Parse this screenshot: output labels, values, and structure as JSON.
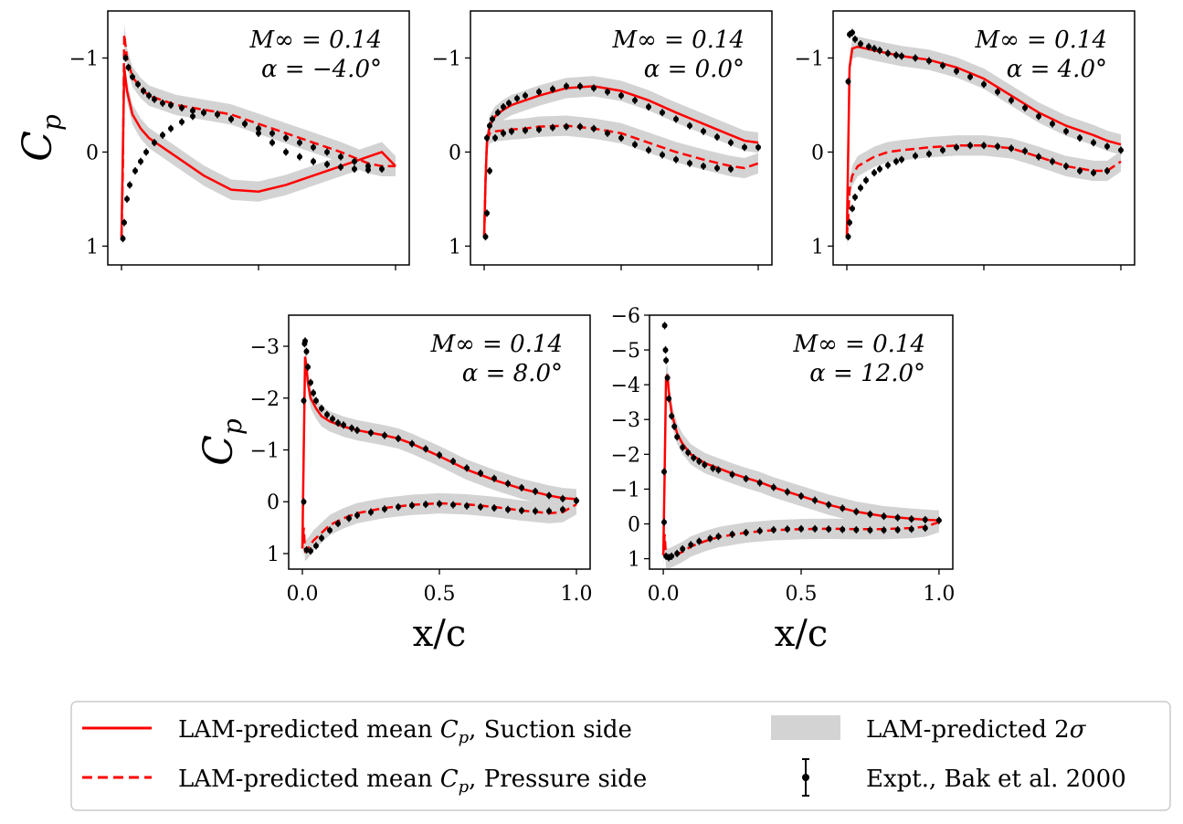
{
  "chart_data": [
    {
      "type": "line",
      "title": "",
      "mach_label": "M∞ = 0.14",
      "alpha_label": "α = −4.0°",
      "ylabel": "Cp",
      "xlabel": "",
      "ylim": [
        1.2,
        -1.5
      ],
      "yticks": [
        -1,
        0,
        1
      ],
      "ytick_labels": [
        "−1",
        "0",
        "1"
      ],
      "xticks": [
        0,
        0.5,
        1
      ],
      "xtick_labels": [],
      "suction_x": [
        0,
        0.005,
        0.01,
        0.02,
        0.04,
        0.07,
        0.1,
        0.15,
        0.2,
        0.3,
        0.4,
        0.5,
        0.6,
        0.7,
        0.8,
        0.9,
        0.95,
        1.0
      ],
      "suction_cp": [
        0.9,
        0.0,
        -0.9,
        -0.65,
        -0.4,
        -0.25,
        -0.15,
        -0.05,
        0.05,
        0.25,
        0.4,
        0.42,
        0.35,
        0.25,
        0.15,
        0.05,
        0.0,
        0.15
      ],
      "pressure_x": [
        0,
        0.005,
        0.01,
        0.02,
        0.04,
        0.07,
        0.1,
        0.15,
        0.2,
        0.3,
        0.4,
        0.5,
        0.6,
        0.7,
        0.8,
        0.9,
        0.95,
        1.0
      ],
      "pressure_cp": [
        0.9,
        0.2,
        -1.25,
        -1.0,
        -0.8,
        -0.68,
        -0.6,
        -0.55,
        -0.5,
        -0.45,
        -0.4,
        -0.3,
        -0.2,
        -0.1,
        0.0,
        0.12,
        0.15,
        0.15
      ],
      "expt_upper_x": [
        0.015,
        0.025,
        0.04,
        0.06,
        0.08,
        0.1,
        0.12,
        0.15,
        0.18,
        0.22,
        0.26,
        0.3,
        0.35,
        0.4,
        0.45,
        0.5,
        0.55,
        0.6,
        0.65,
        0.7,
        0.75,
        0.8,
        0.85,
        0.9,
        0.95
      ],
      "expt_upper_cp": [
        -1.0,
        -0.9,
        -0.8,
        -0.72,
        -0.65,
        -0.6,
        -0.56,
        -0.52,
        -0.5,
        -0.47,
        -0.44,
        -0.42,
        -0.4,
        -0.35,
        -0.3,
        -0.25,
        -0.2,
        -0.15,
        -0.1,
        -0.05,
        0.0,
        0.05,
        0.1,
        0.15,
        0.18
      ],
      "expt_lower_x": [
        0.005,
        0.01,
        0.02,
        0.03,
        0.05,
        0.07,
        0.09,
        0.12,
        0.15,
        0.18,
        0.22,
        0.26,
        0.3,
        0.35,
        0.4,
        0.45,
        0.5,
        0.55,
        0.6,
        0.65,
        0.7,
        0.75,
        0.8,
        0.85,
        0.9
      ],
      "expt_lower_cp": [
        0.92,
        0.75,
        0.5,
        0.35,
        0.2,
        0.1,
        0.0,
        -0.1,
        -0.18,
        -0.25,
        -0.32,
        -0.38,
        -0.42,
        -0.4,
        -0.35,
        -0.3,
        -0.2,
        -0.1,
        0.0,
        0.05,
        0.1,
        0.13,
        0.16,
        0.18,
        0.19
      ]
    },
    {
      "type": "line",
      "title": "",
      "mach_label": "M∞ = 0.14",
      "alpha_label": "α = 0.0°",
      "ylabel": "",
      "xlabel": "",
      "ylim": [
        1.2,
        -1.5
      ],
      "yticks": [
        -1,
        0,
        1
      ],
      "ytick_labels": [
        "−1",
        "0",
        "1"
      ],
      "xticks": [
        0,
        0.5,
        1
      ],
      "xtick_labels": [],
      "suction_x": [
        0,
        0.005,
        0.01,
        0.02,
        0.04,
        0.07,
        0.1,
        0.15,
        0.2,
        0.3,
        0.4,
        0.5,
        0.6,
        0.7,
        0.8,
        0.9,
        0.95,
        1.0
      ],
      "suction_cp": [
        0.9,
        0.3,
        -0.1,
        -0.28,
        -0.38,
        -0.45,
        -0.5,
        -0.55,
        -0.6,
        -0.68,
        -0.7,
        -0.65,
        -0.55,
        -0.42,
        -0.3,
        -0.18,
        -0.12,
        -0.1
      ],
      "pressure_x": [
        0,
        0.005,
        0.01,
        0.02,
        0.04,
        0.07,
        0.1,
        0.15,
        0.2,
        0.3,
        0.4,
        0.5,
        0.6,
        0.7,
        0.8,
        0.9,
        0.95,
        1.0
      ],
      "pressure_cp": [
        0.9,
        0.3,
        -0.1,
        -0.2,
        -0.22,
        -0.23,
        -0.24,
        -0.25,
        -0.27,
        -0.28,
        -0.25,
        -0.2,
        -0.1,
        0.0,
        0.08,
        0.15,
        0.17,
        0.12
      ],
      "expt_upper_x": [
        0.01,
        0.02,
        0.03,
        0.05,
        0.07,
        0.09,
        0.12,
        0.15,
        0.2,
        0.25,
        0.3,
        0.35,
        0.4,
        0.45,
        0.5,
        0.55,
        0.6,
        0.65,
        0.7,
        0.75,
        0.8,
        0.85,
        0.9,
        0.95,
        1.0
      ],
      "expt_upper_cp": [
        -0.15,
        -0.28,
        -0.35,
        -0.42,
        -0.48,
        -0.52,
        -0.57,
        -0.6,
        -0.64,
        -0.67,
        -0.7,
        -0.7,
        -0.68,
        -0.64,
        -0.6,
        -0.55,
        -0.48,
        -0.42,
        -0.35,
        -0.28,
        -0.22,
        -0.16,
        -0.1,
        -0.05,
        -0.05
      ],
      "expt_lower_x": [
        0.005,
        0.01,
        0.02,
        0.04,
        0.07,
        0.1,
        0.15,
        0.2,
        0.25,
        0.3,
        0.35,
        0.4,
        0.45,
        0.5,
        0.55,
        0.6,
        0.65,
        0.7,
        0.75,
        0.8,
        0.85,
        0.9
      ],
      "expt_lower_cp": [
        0.9,
        0.65,
        0.2,
        -0.15,
        -0.2,
        -0.22,
        -0.23,
        -0.24,
        -0.26,
        -0.27,
        -0.27,
        -0.25,
        -0.2,
        -0.15,
        -0.08,
        -0.02,
        0.03,
        0.08,
        0.12,
        0.15,
        0.17,
        0.18
      ]
    },
    {
      "type": "line",
      "title": "",
      "mach_label": "M∞ = 0.14",
      "alpha_label": "α = 4.0°",
      "ylabel": "",
      "xlabel": "",
      "ylim": [
        1.2,
        -1.5
      ],
      "yticks": [
        -1,
        0,
        1
      ],
      "ytick_labels": [
        "−1",
        "0",
        "1"
      ],
      "xticks": [
        0,
        0.5,
        1
      ],
      "xtick_labels": [],
      "suction_x": [
        0,
        0.005,
        0.01,
        0.02,
        0.04,
        0.07,
        0.1,
        0.15,
        0.2,
        0.3,
        0.4,
        0.5,
        0.6,
        0.7,
        0.8,
        0.9,
        0.95,
        1.0
      ],
      "suction_cp": [
        0.9,
        0.0,
        -0.9,
        -1.1,
        -1.12,
        -1.1,
        -1.08,
        -1.05,
        -1.02,
        -0.98,
        -0.9,
        -0.78,
        -0.6,
        -0.42,
        -0.28,
        -0.18,
        -0.12,
        -0.08
      ],
      "pressure_x": [
        0,
        0.005,
        0.01,
        0.02,
        0.04,
        0.07,
        0.1,
        0.15,
        0.2,
        0.3,
        0.4,
        0.5,
        0.6,
        0.7,
        0.8,
        0.9,
        0.95,
        1.0
      ],
      "pressure_cp": [
        0.9,
        0.7,
        0.4,
        0.25,
        0.15,
        0.1,
        0.05,
        0.0,
        -0.02,
        -0.05,
        -0.07,
        -0.07,
        -0.04,
        0.05,
        0.15,
        0.2,
        0.2,
        0.1
      ],
      "expt_upper_x": [
        0.005,
        0.01,
        0.02,
        0.03,
        0.05,
        0.08,
        0.1,
        0.12,
        0.15,
        0.18,
        0.2,
        0.25,
        0.3,
        0.35,
        0.4,
        0.45,
        0.5,
        0.55,
        0.6,
        0.65,
        0.7,
        0.75,
        0.8,
        0.85,
        0.9,
        0.95,
        1.0
      ],
      "expt_upper_cp": [
        -0.75,
        -1.25,
        -1.27,
        -1.2,
        -1.15,
        -1.12,
        -1.1,
        -1.08,
        -1.05,
        -1.03,
        -1.02,
        -1.0,
        -0.97,
        -0.92,
        -0.86,
        -0.8,
        -0.72,
        -0.64,
        -0.55,
        -0.47,
        -0.38,
        -0.3,
        -0.22,
        -0.15,
        -0.1,
        -0.06,
        -0.02
      ],
      "expt_lower_x": [
        0.005,
        0.01,
        0.02,
        0.03,
        0.05,
        0.07,
        0.1,
        0.12,
        0.15,
        0.18,
        0.2,
        0.25,
        0.3,
        0.35,
        0.4,
        0.45,
        0.5,
        0.55,
        0.6,
        0.65,
        0.7,
        0.75,
        0.8,
        0.85,
        0.9,
        0.95
      ],
      "expt_lower_cp": [
        0.9,
        0.75,
        0.6,
        0.48,
        0.38,
        0.3,
        0.22,
        0.18,
        0.14,
        0.1,
        0.08,
        0.04,
        0.02,
        -0.02,
        -0.05,
        -0.07,
        -0.07,
        -0.06,
        -0.04,
        -0.01,
        0.05,
        0.1,
        0.15,
        0.2,
        0.22,
        0.2
      ]
    },
    {
      "type": "line",
      "title": "",
      "mach_label": "M∞ = 0.14",
      "alpha_label": "α = 8.0°",
      "ylabel": "Cp",
      "xlabel": "x/c",
      "ylim": [
        1.3,
        -3.6
      ],
      "yticks": [
        -3,
        -2,
        -1,
        0,
        1
      ],
      "ytick_labels": [
        "−3",
        "−2",
        "−1",
        "0",
        "1"
      ],
      "xticks": [
        0,
        0.5,
        1
      ],
      "xtick_labels": [
        "0.0",
        "0.5",
        "1.0"
      ],
      "suction_x": [
        0,
        0.005,
        0.01,
        0.015,
        0.02,
        0.03,
        0.05,
        0.07,
        0.1,
        0.15,
        0.2,
        0.25,
        0.3,
        0.35,
        0.4,
        0.5,
        0.6,
        0.7,
        0.8,
        0.9,
        0.95,
        1.0
      ],
      "suction_cp": [
        0.9,
        -1.0,
        -2.8,
        -2.6,
        -2.3,
        -2.0,
        -1.8,
        -1.65,
        -1.55,
        -1.45,
        -1.38,
        -1.33,
        -1.28,
        -1.22,
        -1.12,
        -0.88,
        -0.62,
        -0.42,
        -0.25,
        -0.12,
        -0.07,
        -0.05
      ],
      "pressure_x": [
        0,
        0.005,
        0.01,
        0.02,
        0.04,
        0.07,
        0.1,
        0.15,
        0.2,
        0.3,
        0.4,
        0.5,
        0.6,
        0.7,
        0.8,
        0.9,
        0.95,
        1.0
      ],
      "pressure_cp": [
        0.9,
        0.5,
        0.95,
        0.9,
        0.75,
        0.6,
        0.45,
        0.32,
        0.22,
        0.12,
        0.06,
        0.03,
        0.05,
        0.1,
        0.17,
        0.22,
        0.2,
        0.05
      ],
      "expt_upper_x": [
        0.005,
        0.008,
        0.01,
        0.015,
        0.02,
        0.03,
        0.04,
        0.05,
        0.07,
        0.09,
        0.11,
        0.13,
        0.15,
        0.18,
        0.2,
        0.25,
        0.3,
        0.35,
        0.4,
        0.45,
        0.5,
        0.55,
        0.6,
        0.65,
        0.7,
        0.75,
        0.8,
        0.85,
        0.9,
        0.95,
        1.0
      ],
      "expt_upper_cp": [
        -1.95,
        -3.05,
        -3.1,
        -2.9,
        -2.6,
        -2.3,
        -2.1,
        -1.95,
        -1.8,
        -1.68,
        -1.6,
        -1.52,
        -1.48,
        -1.42,
        -1.38,
        -1.33,
        -1.28,
        -1.22,
        -1.12,
        -1.02,
        -0.9,
        -0.78,
        -0.65,
        -0.55,
        -0.45,
        -0.35,
        -0.27,
        -0.2,
        -0.12,
        -0.06,
        -0.02
      ],
      "expt_lower_x": [
        0.005,
        0.015,
        0.03,
        0.05,
        0.07,
        0.1,
        0.13,
        0.17,
        0.2,
        0.25,
        0.3,
        0.35,
        0.4,
        0.45,
        0.5,
        0.55,
        0.6,
        0.65,
        0.7,
        0.75,
        0.8,
        0.85,
        0.9,
        0.95
      ],
      "expt_lower_cp": [
        0.0,
        0.93,
        0.95,
        0.85,
        0.7,
        0.55,
        0.42,
        0.32,
        0.26,
        0.2,
        0.14,
        0.1,
        0.07,
        0.05,
        0.04,
        0.06,
        0.08,
        0.1,
        0.12,
        0.15,
        0.17,
        0.18,
        0.18,
        0.15
      ]
    },
    {
      "type": "line",
      "title": "",
      "mach_label": "M∞ = 0.14",
      "alpha_label": "α = 12.0°",
      "ylabel": "",
      "xlabel": "x/c",
      "ylim": [
        1.3,
        -6.0
      ],
      "yticks": [
        -6,
        -5,
        -4,
        -3,
        -2,
        -1,
        0,
        1
      ],
      "ytick_labels": [
        "−6",
        "−5",
        "−4",
        "−3",
        "−2",
        "−1",
        "0",
        "1"
      ],
      "xticks": [
        0,
        0.5,
        1
      ],
      "xtick_labels": [
        "0.0",
        "0.5",
        "1.0"
      ],
      "suction_x": [
        0,
        0.005,
        0.01,
        0.015,
        0.02,
        0.03,
        0.05,
        0.07,
        0.1,
        0.15,
        0.2,
        0.25,
        0.3,
        0.35,
        0.4,
        0.5,
        0.6,
        0.7,
        0.8,
        0.9,
        0.95,
        1.0
      ],
      "suction_cp": [
        0.9,
        -1.5,
        -4.2,
        -4.3,
        -3.8,
        -3.2,
        -2.6,
        -2.3,
        -2.0,
        -1.75,
        -1.6,
        -1.45,
        -1.32,
        -1.2,
        -1.05,
        -0.8,
        -0.55,
        -0.35,
        -0.22,
        -0.15,
        -0.12,
        -0.1
      ],
      "pressure_x": [
        0,
        0.005,
        0.01,
        0.02,
        0.04,
        0.07,
        0.1,
        0.15,
        0.2,
        0.3,
        0.4,
        0.5,
        0.6,
        0.7,
        0.8,
        0.9,
        0.95,
        1.0
      ],
      "pressure_cp": [
        0.9,
        0.3,
        0.97,
        1.0,
        0.92,
        0.8,
        0.65,
        0.5,
        0.38,
        0.25,
        0.18,
        0.15,
        0.14,
        0.15,
        0.15,
        0.12,
        0.08,
        -0.05
      ],
      "expt_upper_x": [
        0.003,
        0.005,
        0.008,
        0.01,
        0.015,
        0.02,
        0.03,
        0.04,
        0.05,
        0.07,
        0.09,
        0.11,
        0.13,
        0.15,
        0.18,
        0.2,
        0.25,
        0.3,
        0.35,
        0.4,
        0.45,
        0.5,
        0.55,
        0.6,
        0.65,
        0.7,
        0.75,
        0.8,
        0.85,
        0.9,
        0.95,
        1.0
      ],
      "expt_upper_cp": [
        -1.5,
        -5.7,
        -5.0,
        -4.7,
        -4.2,
        -3.6,
        -3.1,
        -2.8,
        -2.5,
        -2.2,
        -2.05,
        -1.9,
        -1.8,
        -1.7,
        -1.6,
        -1.55,
        -1.42,
        -1.3,
        -1.18,
        -1.05,
        -0.92,
        -0.8,
        -0.68,
        -0.55,
        -0.45,
        -0.35,
        -0.28,
        -0.22,
        -0.18,
        -0.14,
        -0.12,
        -0.1
      ],
      "expt_lower_x": [
        0.003,
        0.01,
        0.02,
        0.03,
        0.05,
        0.07,
        0.1,
        0.13,
        0.17,
        0.2,
        0.25,
        0.3,
        0.35,
        0.4,
        0.45,
        0.5,
        0.55,
        0.6,
        0.65,
        0.7,
        0.75,
        0.8,
        0.85,
        0.9,
        0.95
      ],
      "expt_lower_cp": [
        -0.05,
        0.93,
        0.97,
        0.93,
        0.85,
        0.72,
        0.6,
        0.5,
        0.42,
        0.36,
        0.3,
        0.25,
        0.2,
        0.17,
        0.15,
        0.14,
        0.14,
        0.15,
        0.16,
        0.17,
        0.18,
        0.18,
        0.17,
        0.15,
        0.12
      ]
    }
  ],
  "legend": {
    "items": [
      {
        "label_prefix": "LAM-predicted mean ",
        "label_symbol": "C",
        "label_sub": "p",
        "label_suffix": ", Suction side"
      },
      {
        "label_prefix": "LAM-predicted mean ",
        "label_symbol": "C",
        "label_sub": "p",
        "label_suffix": ", Pressure side"
      },
      {
        "label_prefix": "LAM-predicted 2",
        "label_symbol": "σ",
        "label_sub": "",
        "label_suffix": ""
      },
      {
        "label_prefix": "Expt., Bak et al. 2000",
        "label_symbol": "",
        "label_sub": "",
        "label_suffix": ""
      }
    ]
  },
  "colors": {
    "line": "#ff0000",
    "band": "#d3d3d3",
    "expt": "#000000"
  }
}
